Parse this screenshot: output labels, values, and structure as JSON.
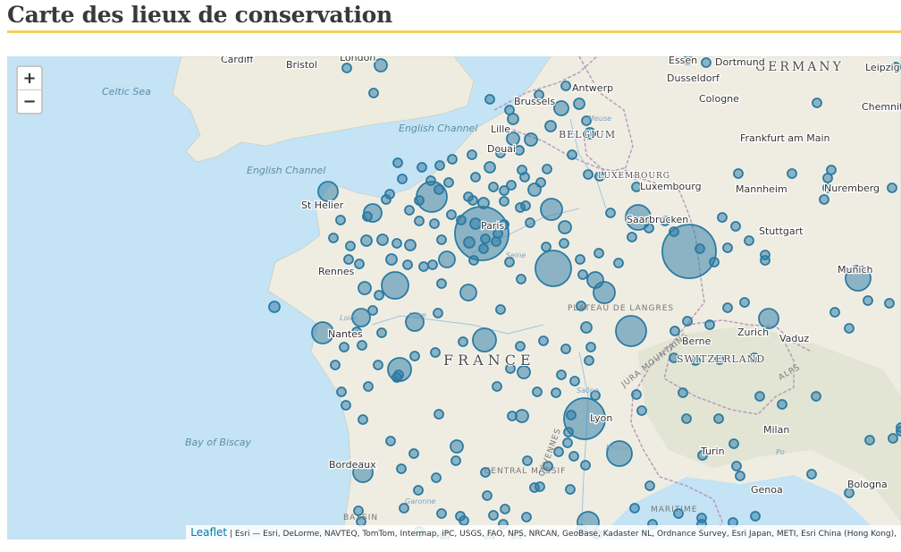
{
  "page": {
    "title": "Carte des lieux de conservation",
    "accent_color": "#f4cf59"
  },
  "map": {
    "zoom_in_label": "+",
    "zoom_out_label": "−",
    "attribution_link": "Leaflet",
    "attribution_text": " | Esri — Esri, DeLorme, NAVTEQ, TomTom, Intermap, iPC, USGS, FAO, NPS, NRCAN, GeoBase, Kadaster NL, Ordnance Survey, Esri Japan, METI, Esri China (Hong Kong),",
    "marker_color": "#2a7aa3",
    "sea_labels": [
      "Celtic Sea",
      "English Channel",
      "English Channel",
      "Bay of Biscay"
    ],
    "country_labels": [
      "GERMANY",
      "BELGIUM",
      "LUXEMBOURG",
      "FRANCE",
      "SWITZERLAND"
    ],
    "region_labels": [
      "PLATEAU DE LANGRES",
      "JURA MOUNTAINS",
      "CENTRAL MASSIF",
      "CÉVENNES",
      "MARITIME",
      "BASSIN",
      "ALPS"
    ],
    "river_labels": [
      "Meuse",
      "Seine",
      "Loire",
      "Loire",
      "Saône",
      "Rhône",
      "Po",
      "Garonne"
    ],
    "place_labels": [
      "Cardiff",
      "Bristol",
      "London",
      "Essen",
      "Dortmund",
      "Leipzig",
      "Antwerp",
      "Dusseldorf",
      "Brussels",
      "Cologne",
      "Chemnitz",
      "Lille",
      "Douai",
      "Frankfurt am Main",
      "Luxembourg",
      "Mannheim",
      "Nuremberg",
      "St Helier",
      "Paris",
      "Saarbrucken",
      "Stuttgart",
      "Rennes",
      "Munich",
      "Nantes",
      "Zurich",
      "Vaduz",
      "Berne",
      "Lyon",
      "Milan",
      "Turin",
      "Bordeaux",
      "Genoa",
      "Bologna"
    ]
  }
}
